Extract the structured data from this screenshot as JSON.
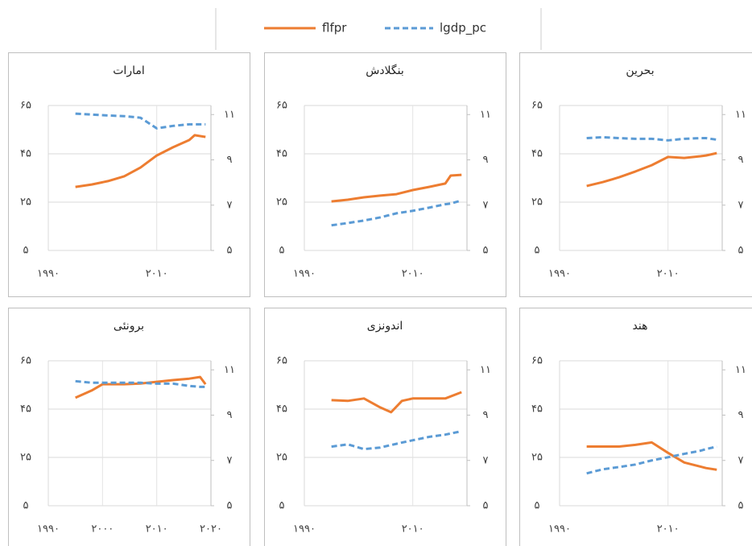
{
  "chart_data": [
    {
      "type": "line",
      "title": "امارات",
      "x": [
        1995,
        1998,
        2001,
        2004,
        2007,
        2010,
        2013,
        2016,
        2017,
        2019
      ],
      "series": [
        {
          "name": "flfpr",
          "color": "#ed7d31",
          "dash": false,
          "axis": "y",
          "values": [
            31.3,
            32.3,
            33.7,
            35.7,
            39.3,
            44.3,
            47.7,
            50.7,
            52.7,
            52
          ]
        },
        {
          "name": "lgdp_pc",
          "color": "#5b9bd5",
          "dash": true,
          "axis": "y2",
          "values": [
            11.04,
            11.0,
            10.96,
            10.93,
            10.86,
            10.39,
            10.5,
            10.57,
            10.57,
            10.57
          ]
        }
      ],
      "xlim": [
        1990,
        2020
      ],
      "xticks": [
        {
          "value": 1990,
          "label": "۱۹۹۰"
        },
        {
          "value": 2010,
          "label": "۲۰۱۰"
        }
      ],
      "ylim": [
        5,
        65
      ],
      "yticks": [
        {
          "value": 5,
          "label": "۵"
        },
        {
          "value": 25,
          "label": "۲۵"
        },
        {
          "value": 45,
          "label": "۴۵"
        },
        {
          "value": 65,
          "label": "۶۵"
        }
      ],
      "y2lim": [
        5,
        11.4
      ],
      "y2ticks": [
        {
          "value": 5,
          "label": "۵"
        },
        {
          "value": 7,
          "label": "۷"
        },
        {
          "value": 9,
          "label": "۹"
        },
        {
          "value": 11,
          "label": "۱۱"
        }
      ],
      "grid": true
    },
    {
      "type": "line",
      "title": "بنگلادش",
      "x": [
        1995,
        1998,
        2001,
        2004,
        2007,
        2010,
        2013,
        2016,
        2017,
        2019
      ],
      "series": [
        {
          "name": "flfpr",
          "color": "#ed7d31",
          "dash": false,
          "axis": "y",
          "values": [
            25.3,
            26,
            27,
            27.7,
            28.3,
            30,
            31.3,
            32.7,
            36,
            36.3
          ]
        },
        {
          "name": "lgdp_pc",
          "color": "#5b9bd5",
          "dash": true,
          "axis": "y2",
          "values": [
            6.11,
            6.21,
            6.32,
            6.46,
            6.64,
            6.75,
            6.89,
            7.04,
            7.07,
            7.21
          ]
        }
      ],
      "xlim": [
        1990,
        2020
      ],
      "xticks": [
        {
          "value": 1990,
          "label": "۱۹۹۰"
        },
        {
          "value": 2010,
          "label": "۲۰۱۰"
        }
      ],
      "ylim": [
        5,
        65
      ],
      "yticks": [
        {
          "value": 5,
          "label": "۵"
        },
        {
          "value": 25,
          "label": "۲۵"
        },
        {
          "value": 45,
          "label": "۴۵"
        },
        {
          "value": 65,
          "label": "۶۵"
        }
      ],
      "y2lim": [
        5,
        11.4
      ],
      "y2ticks": [
        {
          "value": 5,
          "label": "۵"
        },
        {
          "value": 7,
          "label": "۷"
        },
        {
          "value": 9,
          "label": "۹"
        },
        {
          "value": 11,
          "label": "۱۱"
        }
      ],
      "grid": true
    },
    {
      "type": "line",
      "title": "بحرین",
      "x": [
        1995,
        1998,
        2001,
        2004,
        2007,
        2010,
        2013,
        2016,
        2017,
        2019
      ],
      "series": [
        {
          "name": "flfpr",
          "color": "#ed7d31",
          "dash": false,
          "axis": "y",
          "values": [
            31.7,
            33.3,
            35.3,
            37.7,
            40.3,
            43.7,
            43.3,
            44,
            44.3,
            45.3
          ]
        },
        {
          "name": "lgdp_pc",
          "color": "#5b9bd5",
          "dash": true,
          "axis": "y2",
          "values": [
            9.96,
            10,
            9.96,
            9.93,
            9.93,
            9.86,
            9.93,
            9.96,
            9.96,
            9.89
          ]
        }
      ],
      "xlim": [
        1990,
        2020
      ],
      "xticks": [
        {
          "value": 1990,
          "label": "۱۹۹۰"
        },
        {
          "value": 2010,
          "label": "۲۰۱۰"
        }
      ],
      "ylim": [
        5,
        65
      ],
      "yticks": [
        {
          "value": 5,
          "label": "۵"
        },
        {
          "value": 25,
          "label": "۲۵"
        },
        {
          "value": 45,
          "label": "۴۵"
        },
        {
          "value": 65,
          "label": "۶۵"
        }
      ],
      "y2lim": [
        5,
        11.4
      ],
      "y2ticks": [
        {
          "value": 5,
          "label": "۵"
        },
        {
          "value": 7,
          "label": "۷"
        },
        {
          "value": 9,
          "label": "۹"
        },
        {
          "value": 11,
          "label": "۱۱"
        }
      ],
      "grid": true
    },
    {
      "type": "line",
      "title": "برونئی",
      "x": [
        1995,
        1998,
        2000,
        2004,
        2007,
        2010,
        2013,
        2016,
        2018,
        2019
      ],
      "series": [
        {
          "name": "flfpr",
          "color": "#ed7d31",
          "dash": false,
          "axis": "y",
          "values": [
            49.7,
            52.7,
            55.3,
            55.3,
            55.6,
            56.3,
            57,
            57.6,
            58.3,
            55.3
          ]
        },
        {
          "name": "lgdp_pc",
          "color": "#5b9bd5",
          "dash": true,
          "axis": "y2",
          "values": [
            10.5,
            10.43,
            10.43,
            10.43,
            10.43,
            10.39,
            10.39,
            10.29,
            10.25,
            10.25
          ]
        }
      ],
      "xlim": [
        1990,
        2020
      ],
      "xticks": [
        {
          "value": 1990,
          "label": "۱۹۹۰"
        },
        {
          "value": 2000,
          "label": "۲۰۰۰"
        },
        {
          "value": 2010,
          "label": "۲۰۱۰"
        },
        {
          "value": 2020,
          "label": "۲۰۲۰"
        }
      ],
      "ylim": [
        5,
        65
      ],
      "yticks": [
        {
          "value": 5,
          "label": "۵"
        },
        {
          "value": 25,
          "label": "۲۵"
        },
        {
          "value": 45,
          "label": "۴۵"
        },
        {
          "value": 65,
          "label": "۶۵"
        }
      ],
      "y2lim": [
        5,
        11.4
      ],
      "y2ticks": [
        {
          "value": 5,
          "label": "۵"
        },
        {
          "value": 7,
          "label": "۷"
        },
        {
          "value": 9,
          "label": "۹"
        },
        {
          "value": 11,
          "label": "۱۱"
        }
      ],
      "grid": true
    },
    {
      "type": "line",
      "title": "اندونزی",
      "x": [
        1995,
        1998,
        2001,
        2004,
        2006,
        2008,
        2010,
        2013,
        2016,
        2019
      ],
      "series": [
        {
          "name": "flfpr",
          "color": "#ed7d31",
          "dash": false,
          "axis": "y",
          "values": [
            48.7,
            48.4,
            49.4,
            45.7,
            43.7,
            48.4,
            49.4,
            49.4,
            49.4,
            52
          ]
        },
        {
          "name": "lgdp_pc",
          "color": "#5b9bd5",
          "dash": true,
          "axis": "y2",
          "values": [
            7.61,
            7.71,
            7.5,
            7.57,
            7.68,
            7.79,
            7.89,
            8.04,
            8.14,
            8.29
          ]
        }
      ],
      "xlim": [
        1990,
        2020
      ],
      "xticks": [
        {
          "value": 1990,
          "label": "۱۹۹۰"
        },
        {
          "value": 2010,
          "label": "۲۰۱۰"
        }
      ],
      "ylim": [
        5,
        65
      ],
      "yticks": [
        {
          "value": 5,
          "label": "۵"
        },
        {
          "value": 25,
          "label": "۲۵"
        },
        {
          "value": 45,
          "label": "۴۵"
        },
        {
          "value": 65,
          "label": "۶۵"
        }
      ],
      "y2lim": [
        5,
        11.4
      ],
      "y2ticks": [
        {
          "value": 5,
          "label": "۵"
        },
        {
          "value": 7,
          "label": "۷"
        },
        {
          "value": 9,
          "label": "۹"
        },
        {
          "value": 11,
          "label": "۱۱"
        }
      ],
      "grid": true
    },
    {
      "type": "line",
      "title": "هند",
      "x": [
        1995,
        1998,
        2001,
        2004,
        2007,
        2010,
        2013,
        2016,
        2017,
        2019
      ],
      "series": [
        {
          "name": "flfpr",
          "color": "#ed7d31",
          "dash": false,
          "axis": "y",
          "values": [
            29.5,
            29.5,
            29.5,
            30.2,
            31.2,
            26.9,
            22.9,
            21.2,
            20.6,
            19.9
          ]
        },
        {
          "name": "lgdp_pc",
          "color": "#5b9bd5",
          "dash": true,
          "axis": "y2",
          "values": [
            6.43,
            6.61,
            6.71,
            6.82,
            7.0,
            7.14,
            7.29,
            7.43,
            7.5,
            7.61
          ]
        }
      ],
      "xlim": [
        1990,
        2020
      ],
      "xticks": [
        {
          "value": 1990,
          "label": "۱۹۹۰"
        },
        {
          "value": 2010,
          "label": "۲۰۱۰"
        }
      ],
      "ylim": [
        5,
        65
      ],
      "yticks": [
        {
          "value": 5,
          "label": "۵"
        },
        {
          "value": 25,
          "label": "۲۵"
        },
        {
          "value": 45,
          "label": "۴۵"
        },
        {
          "value": 65,
          "label": "۶۵"
        }
      ],
      "y2lim": [
        5,
        11.4
      ],
      "y2ticks": [
        {
          "value": 5,
          "label": "۵"
        },
        {
          "value": 7,
          "label": "۷"
        },
        {
          "value": 9,
          "label": "۹"
        },
        {
          "value": 11,
          "label": "۱۱"
        }
      ],
      "grid": true
    }
  ]
}
